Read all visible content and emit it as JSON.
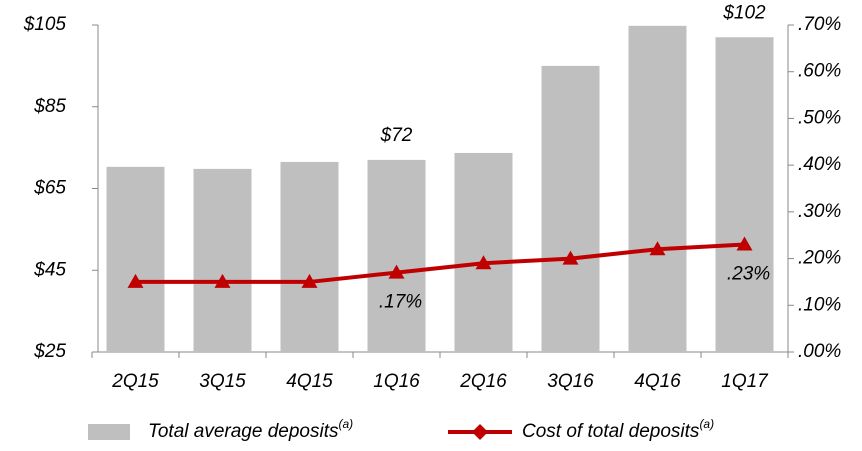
{
  "chart_data": {
    "type": "bar_line",
    "categories": [
      "2Q15",
      "3Q15",
      "4Q15",
      "1Q16",
      "2Q16",
      "3Q16",
      "4Q16",
      "1Q17"
    ],
    "series": [
      {
        "name": "Total average deposits",
        "note": "(a)",
        "type": "bar",
        "color": "#bfbfbf",
        "values": [
          70.3,
          69.8,
          71.5,
          72,
          73.7,
          95,
          104.8,
          102
        ],
        "value_labels": [
          null,
          null,
          null,
          "$72",
          null,
          null,
          null,
          "$102"
        ]
      },
      {
        "name": "Cost of total deposits",
        "note": "(a)",
        "type": "line",
        "axis": "y2",
        "color": "#c00000",
        "values": [
          0.15,
          0.15,
          0.15,
          0.17,
          0.19,
          0.2,
          0.22,
          0.23
        ],
        "value_labels": [
          null,
          null,
          null,
          ".17%",
          null,
          null,
          null,
          ".23%"
        ]
      }
    ],
    "ylim": [
      25,
      105
    ],
    "yticks": [
      {
        "value": 25,
        "label": "$25"
      },
      {
        "value": 45,
        "label": "$45"
      },
      {
        "value": 65,
        "label": "$65"
      },
      {
        "value": 85,
        "label": "$85"
      },
      {
        "value": 105,
        "label": "$105"
      }
    ],
    "y2lim": [
      0,
      0.7
    ],
    "y2ticks": [
      {
        "value": 0,
        "label": ".00%"
      },
      {
        "value": 0.1,
        "label": ".10%"
      },
      {
        "value": 0.2,
        "label": ".20%"
      },
      {
        "value": 0.3,
        "label": ".30%"
      },
      {
        "value": 0.4,
        "label": ".40%"
      },
      {
        "value": 0.5,
        "label": ".50%"
      },
      {
        "value": 0.6,
        "label": ".60%"
      },
      {
        "value": 0.7,
        "label": ".70%"
      }
    ],
    "grid": false
  }
}
